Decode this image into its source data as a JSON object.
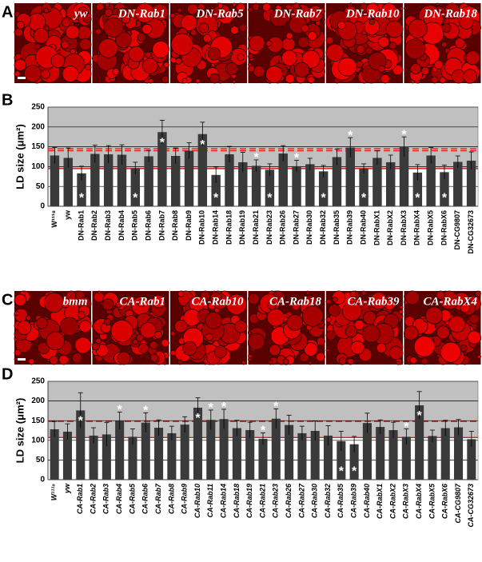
{
  "panels": [
    {
      "label": "A",
      "images": [
        "yw",
        "DN-Rab1",
        "DN-Rab5",
        "DN-Rab7",
        "DN-Rab10",
        "DN-Rab18"
      ]
    },
    {
      "label": "C",
      "images": [
        "bmm",
        "CA-Rab1",
        "CA-Rab10",
        "CA-Rab18",
        "CA-Rab39",
        "CA-RabX4"
      ]
    }
  ],
  "chart_data": [
    {
      "type": "bar",
      "panel_label": "B",
      "y_label": "LD size (μm²)",
      "color": "#3a3a3a",
      "italic_categories": false,
      "categories": [
        "W¹¹¹⁸",
        "yw",
        "DN-Rab1",
        "DN-Rab2",
        "DN-Rab3",
        "DN-Rab4",
        "DN-Rab5",
        "DN-Rab6",
        "DN-Rab7",
        "DN-Rab8",
        "DN-Rab9",
        "DN-Rab10",
        "DN-Rab14",
        "DN-Rab18",
        "DN-Rab19",
        "DN-Rab21",
        "DN-Rab23",
        "DN-Rab26",
        "DN-Rab27",
        "DN-Rab30",
        "DN-Rab32",
        "DN-Rab35",
        "DN-Rab39",
        "DN-Rab40",
        "DN-RabX1",
        "DN-RabX2",
        "DN-RabX3",
        "DN-RabX4",
        "DN-RabX5",
        "DN-RabX6",
        "DN-CG9807",
        "DN-CG32673"
      ],
      "values": [
        128,
        122,
        83,
        132,
        131,
        130,
        96,
        126,
        187,
        127,
        140,
        182,
        79,
        131,
        111,
        102,
        92,
        133,
        101,
        106,
        88,
        124,
        148,
        95,
        122,
        111,
        150,
        85,
        128,
        86,
        112,
        115
      ],
      "errors": [
        20,
        25,
        18,
        22,
        22,
        25,
        15,
        15,
        30,
        20,
        20,
        30,
        20,
        20,
        25,
        15,
        15,
        20,
        15,
        15,
        15,
        20,
        25,
        12,
        18,
        18,
        25,
        20,
        20,
        18,
        15,
        22
      ],
      "markers": [
        null,
        null,
        "*",
        null,
        null,
        null,
        "*",
        null,
        "*",
        null,
        null,
        "*",
        "*",
        null,
        null,
        "*",
        "*",
        null,
        "*",
        null,
        "*",
        null,
        "*",
        "*",
        null,
        null,
        "*",
        "*",
        null,
        "*",
        null,
        null
      ],
      "reference_lines": [
        {
          "value": 145,
          "style": "dashed",
          "color": "#e0201c"
        },
        {
          "value": 140,
          "style": "dashed",
          "color": "#e0201c"
        },
        {
          "value": 95,
          "style": "solid",
          "color": "#e0201c"
        }
      ],
      "ylim": [
        0,
        250
      ],
      "yticks": [
        0,
        50,
        100,
        150,
        200,
        250
      ],
      "grid": true
    },
    {
      "type": "bar",
      "panel_label": "D",
      "y_label": "LD size (μm²)",
      "color": "#3a3a3a",
      "italic_categories": true,
      "categories": [
        "W¹¹¹⁸",
        "yw",
        "CA-Rab1",
        "CA-Rab2",
        "CA-Rab3",
        "CA-Rab4",
        "CA-Rab5",
        "CA-Rab6",
        "CA-Rab7",
        "CA-Rab8",
        "CA-Rab9",
        "CA-Rab10",
        "CA-Rab11",
        "CA-Rab14",
        "CA-Rab18",
        "CA-Rab19",
        "CA-Rab21",
        "CA-Rab23",
        "CA-Rab26",
        "CA-Rab27",
        "CA-Rab30",
        "CA-Rab32",
        "CA-Rab35",
        "CA-Rab39",
        "CA-Rab40",
        "CA-RabX1",
        "CA-RabX2",
        "CA-RabX3",
        "CA-RabX4",
        "CA-RabX5",
        "CA-RabX6",
        "CA-CG9807",
        "CA-CG32673"
      ],
      "values": [
        128,
        122,
        176,
        112,
        115,
        150,
        109,
        145,
        132,
        118,
        140,
        183,
        152,
        154,
        131,
        126,
        104,
        155,
        139,
        118,
        124,
        112,
        98,
        90,
        144,
        134,
        126,
        109,
        189,
        111,
        131,
        133,
        103
      ],
      "errors": [
        20,
        20,
        45,
        20,
        30,
        22,
        20,
        25,
        20,
        18,
        20,
        25,
        25,
        25,
        20,
        20,
        15,
        25,
        25,
        18,
        25,
        25,
        25,
        20,
        25,
        18,
        20,
        20,
        35,
        15,
        20,
        20,
        20
      ],
      "markers": [
        null,
        null,
        "*",
        null,
        null,
        "*",
        null,
        "*",
        null,
        null,
        null,
        "*",
        "*",
        "*",
        null,
        null,
        "*",
        "*",
        null,
        null,
        null,
        null,
        "*",
        "*",
        null,
        null,
        null,
        "*",
        "*",
        null,
        null,
        null,
        null
      ],
      "reference_lines": [
        {
          "value": 148,
          "style": "dashed",
          "color": "#e0201c"
        },
        {
          "value": 107,
          "style": "solid",
          "color": "#e0201c"
        }
      ],
      "ylim": [
        0,
        250
      ],
      "yticks": [
        0,
        50,
        100,
        150,
        200,
        250
      ],
      "grid": true
    }
  ]
}
